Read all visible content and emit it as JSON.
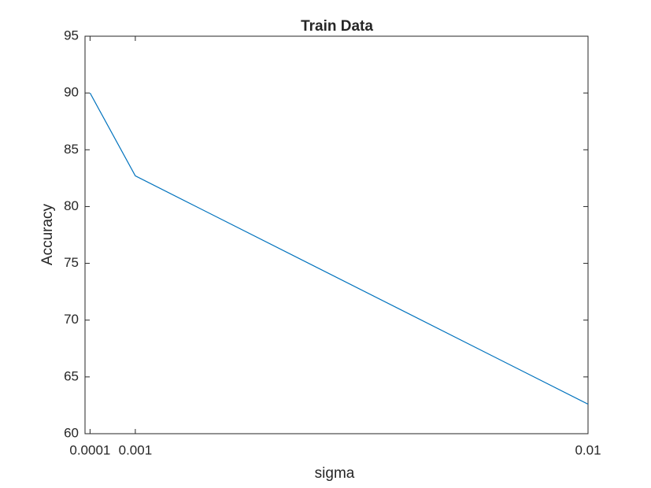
{
  "chart_data": {
    "type": "line",
    "title": "Train Data",
    "x_label": "sigma",
    "y_label": "Accuracy",
    "x": [
      0.0001,
      0.001,
      0.01
    ],
    "values": [
      90,
      82.7,
      62.6
    ],
    "color": "#0072bd",
    "xlim": [
      0,
      0.01
    ],
    "xticks": [
      0.0001,
      0.001,
      0.01
    ],
    "ylim": [
      60,
      95
    ],
    "yticks": [
      60,
      65,
      70,
      75,
      80,
      85,
      90,
      95
    ],
    "grid": false
  }
}
